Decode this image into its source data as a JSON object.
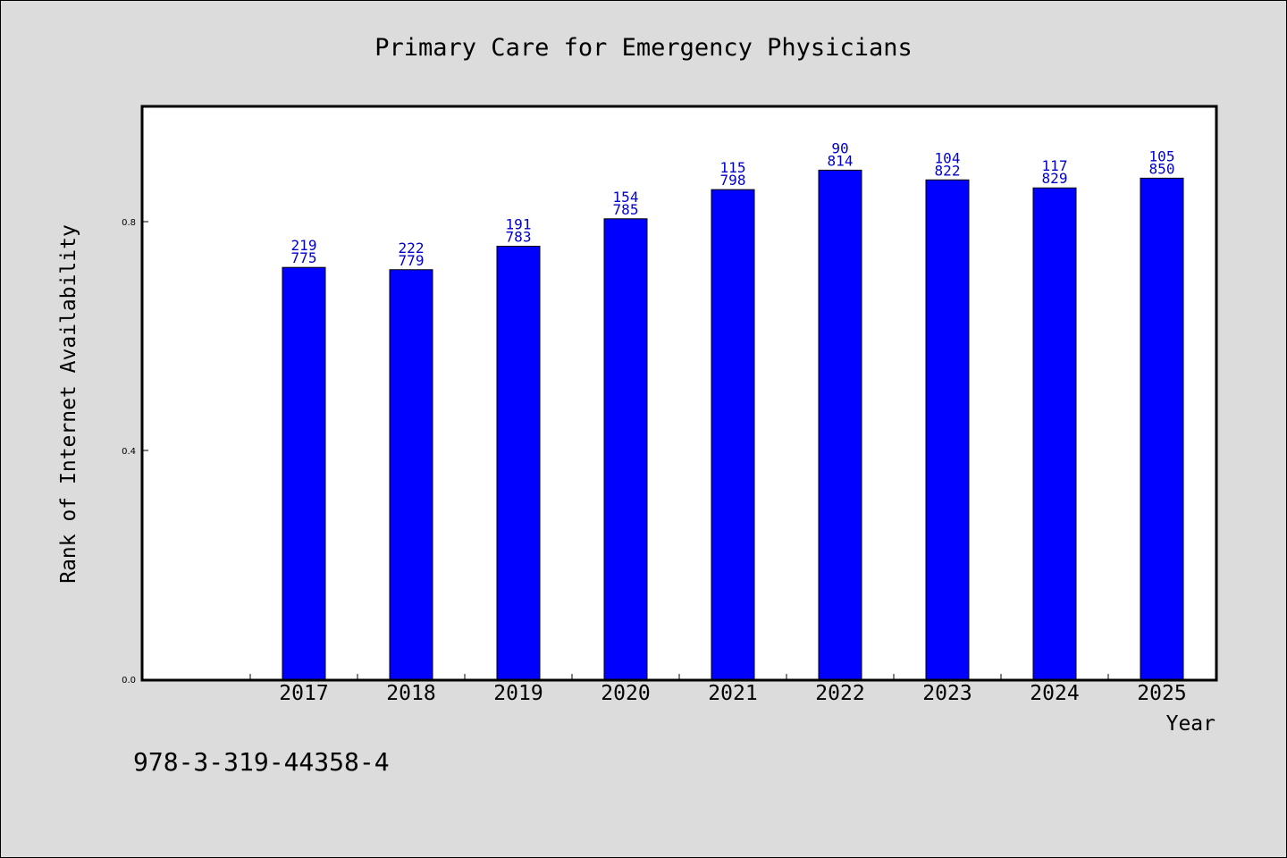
{
  "chart_data": {
    "type": "bar",
    "title": "Primary Care for Emergency Physicians",
    "xlabel": "Year",
    "ylabel": "Rank of Internet Availability",
    "categories": [
      "2017",
      "2018",
      "2019",
      "2020",
      "2021",
      "2022",
      "2023",
      "2024",
      "2025"
    ],
    "values": [
      0.72,
      0.716,
      0.757,
      0.805,
      0.856,
      0.89,
      0.873,
      0.859,
      0.876
    ],
    "label_top": [
      "219",
      "222",
      "191",
      "154",
      "115",
      "90",
      "104",
      "117",
      "105"
    ],
    "label_bottom": [
      "775",
      "779",
      "783",
      "785",
      "798",
      "814",
      "822",
      "829",
      "850"
    ],
    "ylim": [
      0,
      1.0
    ],
    "yticks": [
      0.0,
      0.4,
      0.8
    ],
    "ytick_labels": [
      "0.0",
      "0.4",
      "0.8"
    ],
    "grid": false,
    "bar_color": "#0000ff",
    "label_color": "#0000cc"
  },
  "footer": {
    "isbn": "978-3-319-44358-4"
  }
}
